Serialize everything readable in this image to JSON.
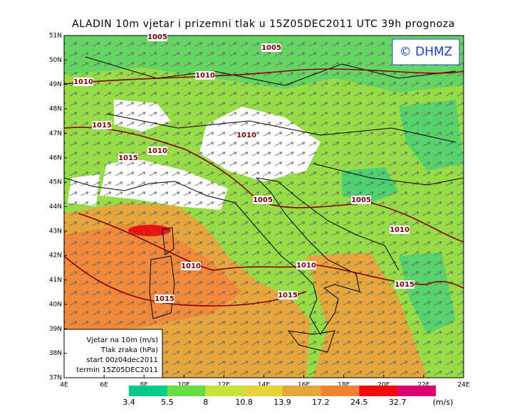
{
  "title": "ALADIN  10m vjetar i prizemni tlak u 15Z05DEC2011 UTC 39h prognoza",
  "logo": "© DHMZ",
  "lat_labels": [
    "51N",
    "50N",
    "49N",
    "48N",
    "47N",
    "46N",
    "45N",
    "44N",
    "43N",
    "42N",
    "41N",
    "40N",
    "39N",
    "38N",
    "37N"
  ],
  "lon_labels": [
    "4E",
    "6E",
    "8E",
    "10E",
    "12E",
    "14E",
    "16E",
    "18E",
    "20E",
    "22E",
    "24E"
  ],
  "isobar_labels": [
    "1005",
    "1005",
    "1010",
    "1010",
    "1015",
    "1010",
    "1010",
    "1015",
    "1005",
    "1005",
    "1010",
    "1010",
    "1010",
    "1015",
    "1015",
    "1015"
  ],
  "legend": [
    "Vjetar na 10m (m/s)",
    "Tlak zraka (hPa)",
    "start 00z04dec2011",
    "termin 15Z05DEC2011"
  ],
  "colorbar": {
    "labels": [
      "3.4",
      "5.5",
      "8",
      "10.8",
      "13.9",
      "17.2",
      "24.5",
      "32.7"
    ],
    "unit": "(m/s)"
  }
}
